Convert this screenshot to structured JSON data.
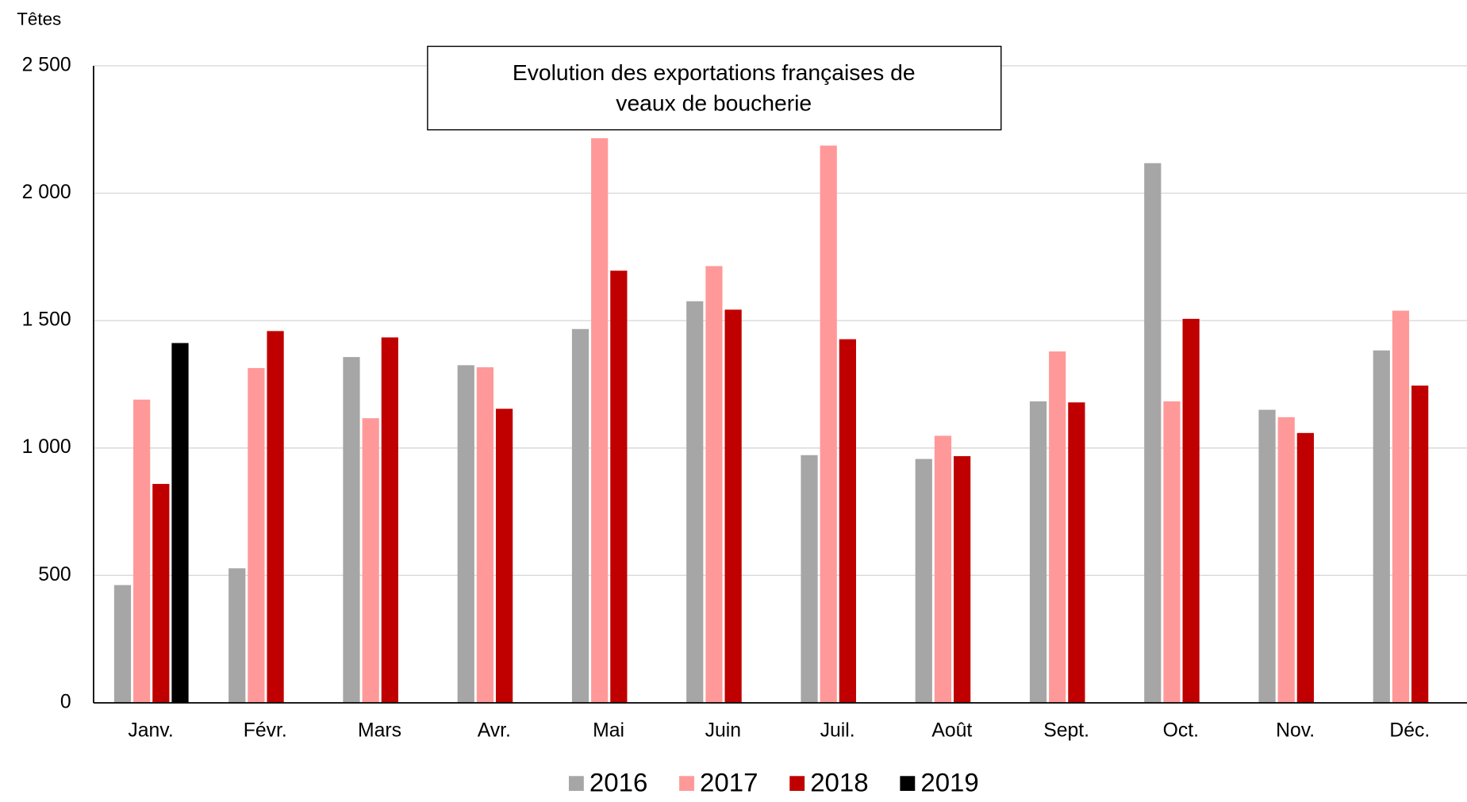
{
  "chart_data": {
    "type": "bar",
    "title": "Evolution des exportations françaises de veaux de boucherie",
    "title_lines": [
      "Evolution des exportations françaises de",
      "veaux de boucherie"
    ],
    "y_label": "Têtes",
    "categories": [
      "Janv.",
      "Févr.",
      "Mars",
      "Avr.",
      "Mai",
      "Juin",
      "Juil.",
      "Août",
      "Sept.",
      "Oct.",
      "Nov.",
      "Déc."
    ],
    "series": [
      {
        "name": "2016",
        "color": "#a6a6a6",
        "values": [
          462,
          528,
          1357,
          1325,
          1467,
          1576,
          972,
          957,
          1183,
          2118,
          1150,
          1383
        ]
      },
      {
        "name": "2017",
        "color": "#ff9999",
        "values": [
          1190,
          1314,
          1117,
          1317,
          2216,
          1714,
          2187,
          1048,
          1379,
          1183,
          1121,
          1539
        ]
      },
      {
        "name": "2018",
        "color": "#c00000",
        "values": [
          859,
          1459,
          1434,
          1154,
          1696,
          1543,
          1427,
          968,
          1179,
          1507,
          1059,
          1245
        ]
      },
      {
        "name": "2019",
        "color": "#000000",
        "values": [
          1412,
          null,
          null,
          null,
          null,
          null,
          null,
          null,
          null,
          null,
          null,
          null
        ]
      }
    ],
    "ylim": [
      0,
      2500
    ],
    "yticks": [
      0,
      500,
      {
        "value": 1000,
        "label": "1 000"
      },
      {
        "value": 1500,
        "label": "1 500"
      },
      {
        "value": 2000,
        "label": "2 000"
      },
      {
        "value": 2500,
        "label": "2 500"
      }
    ],
    "grid": true,
    "legend": "bottom"
  }
}
